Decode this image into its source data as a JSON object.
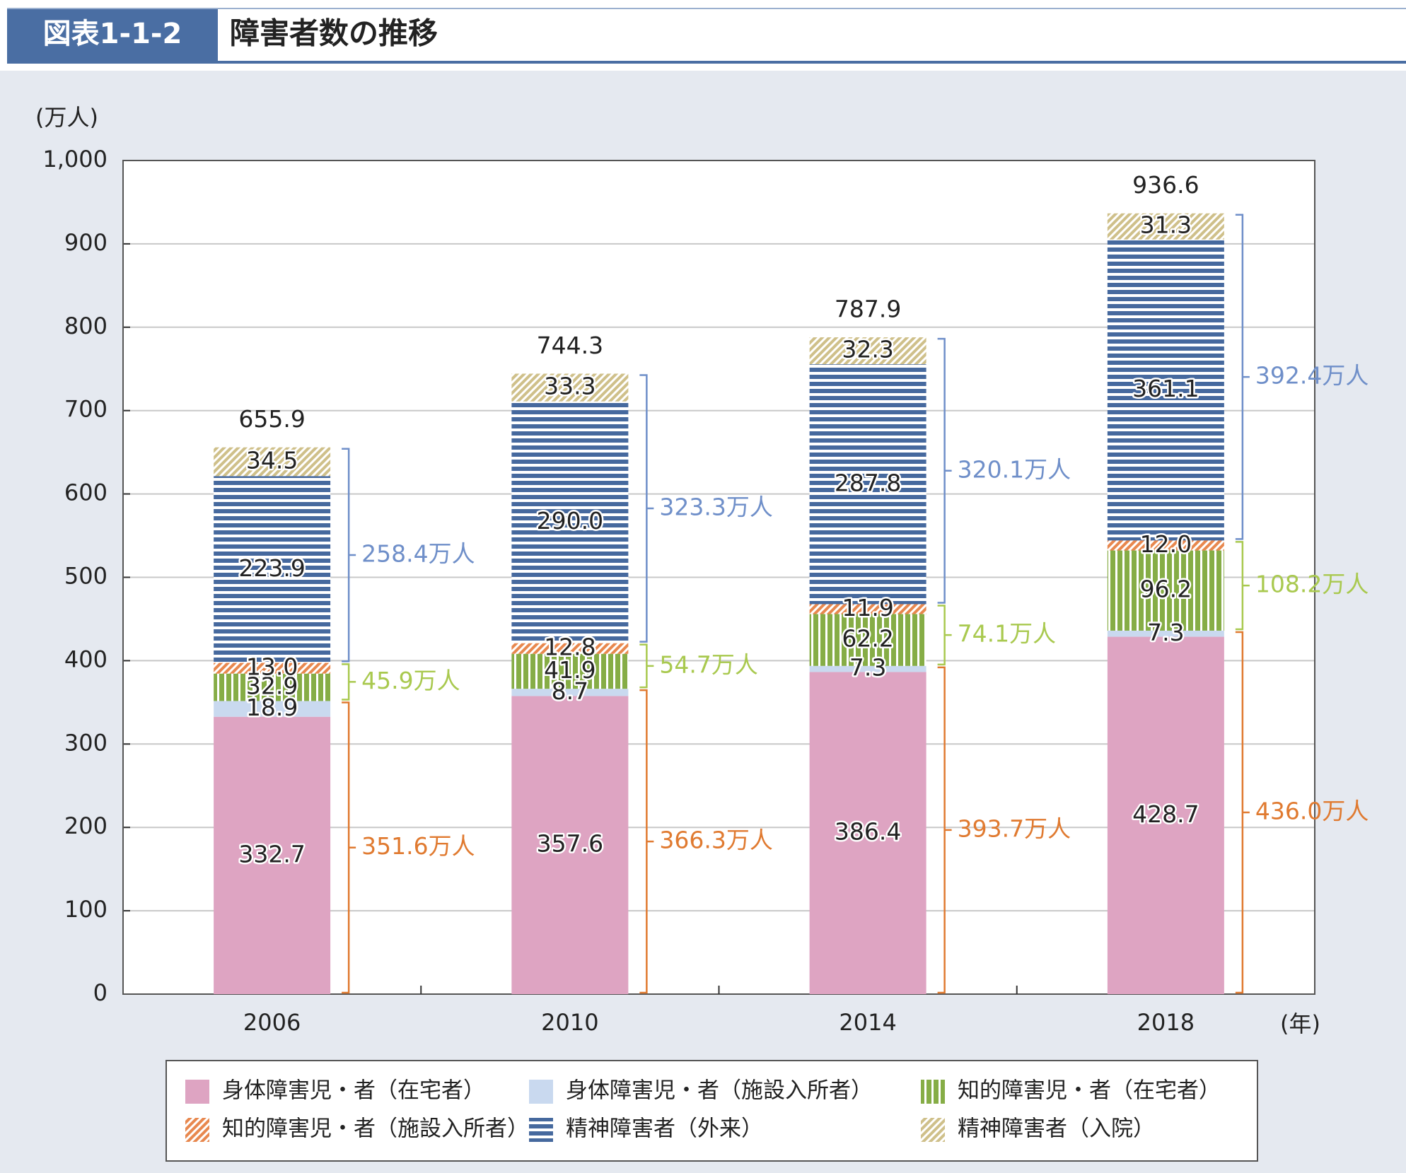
{
  "header": {
    "number": "図表1-1-2",
    "title": "障害者数の推移"
  },
  "chart_data": {
    "type": "stacked_bar",
    "y_label": "(万人)",
    "x_label": "(年)",
    "categories": [
      "2006",
      "2010",
      "2014",
      "2018"
    ],
    "series": [
      {
        "name": "身体障害児・者（在宅者）",
        "color": "#dea4c2",
        "pattern": "solid",
        "values": [
          332.7,
          357.6,
          386.4,
          428.7
        ],
        "value_labels": [
          "332.7",
          "357.6",
          "386.4",
          "428.7"
        ]
      },
      {
        "name": "身体障害児・者（施設入所者）",
        "color": "#c9d9ef",
        "pattern": "solid",
        "values": [
          18.9,
          8.7,
          7.3,
          7.3
        ],
        "value_labels": [
          "18.9",
          "8.7",
          "7.3",
          "7.3"
        ]
      },
      {
        "name": "知的障害児・者（在宅者）",
        "color": "#86ad46",
        "pattern": "vertical",
        "values": [
          32.9,
          41.9,
          62.2,
          96.2
        ],
        "value_labels": [
          "32.9",
          "41.9",
          "62.2",
          "96.2"
        ]
      },
      {
        "name": "知的障害児・者（施設入所者）",
        "color": "#e8884f",
        "pattern": "diagonal",
        "values": [
          13.0,
          12.8,
          11.9,
          12.0
        ],
        "value_labels": [
          "13.0",
          "12.8",
          "11.9",
          "12.0"
        ]
      },
      {
        "name": "精神障害者（外来）",
        "color": "#46699e",
        "pattern": "horizontal",
        "values": [
          223.9,
          290.0,
          287.8,
          361.1
        ],
        "value_labels": [
          "223.9",
          "290.0",
          "287.8",
          "361.1"
        ]
      },
      {
        "name": "精神障害者（入院）",
        "color": "#cfc08a",
        "pattern": "diagonal",
        "values": [
          34.5,
          33.3,
          32.3,
          31.3
        ],
        "value_labels": [
          "34.5",
          "33.3",
          "32.3",
          "31.3"
        ]
      }
    ],
    "totals": [
      655.9,
      744.3,
      787.9,
      936.6
    ],
    "brackets": [
      {
        "color": "#e07a30",
        "values": [
          351.6,
          366.3,
          393.7,
          436.0
        ],
        "value_labels": [
          "351.6万人",
          "366.3万人",
          "393.7万人",
          "436.0万人"
        ]
      },
      {
        "color": "#a9c94f",
        "values": [
          45.9,
          54.7,
          74.1,
          108.2
        ],
        "value_labels": [
          "45.9万人",
          "54.7万人",
          "74.1万人",
          "108.2万人"
        ]
      },
      {
        "color": "#6f8fc9",
        "values": [
          258.4,
          323.3,
          320.1,
          392.4
        ],
        "value_labels": [
          "258.4万人",
          "323.3万人",
          "320.1万人",
          "392.4万人"
        ]
      }
    ],
    "ylim": [
      0,
      1000
    ],
    "yticks": [
      0,
      100,
      200,
      300,
      400,
      500,
      600,
      700,
      800,
      900,
      {
        "value": 1000,
        "label": "1,000"
      }
    ],
    "grid": true
  }
}
